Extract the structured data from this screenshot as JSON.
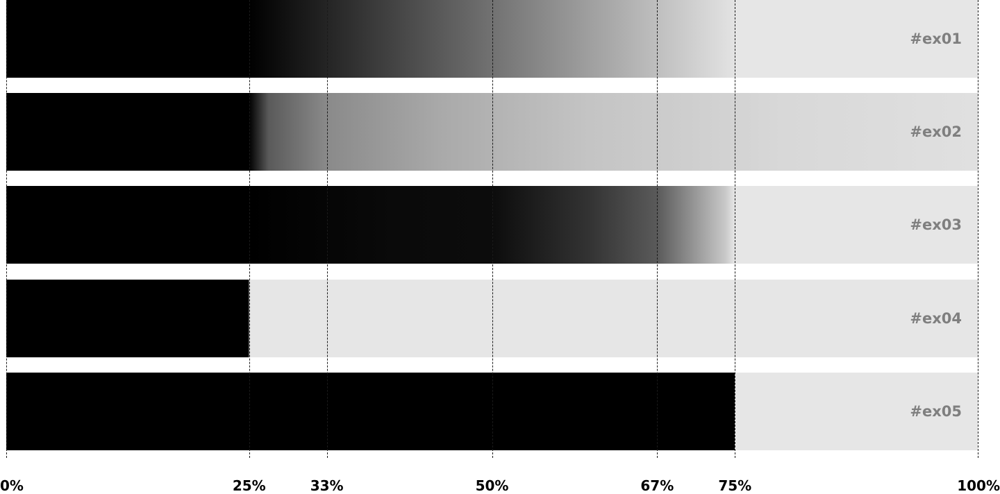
{
  "bars": [
    {
      "label": "#ex01"
    },
    {
      "label": "#ex02"
    },
    {
      "label": "#ex03"
    },
    {
      "label": "#ex04"
    },
    {
      "label": "#ex05"
    }
  ],
  "markers": [
    {
      "label": "0%",
      "value": 0
    },
    {
      "label": "25%",
      "value": 25
    },
    {
      "label": "33%",
      "value": 33
    },
    {
      "label": "50%",
      "value": 50
    },
    {
      "label": "67%",
      "value": 67
    },
    {
      "label": "75%",
      "value": 75
    },
    {
      "label": "100%",
      "value": 100
    }
  ],
  "colors": {
    "fill": "#000000",
    "track": "#e6e6e6",
    "label": "#7f7f7f",
    "guide": "#1a1a1a"
  }
}
